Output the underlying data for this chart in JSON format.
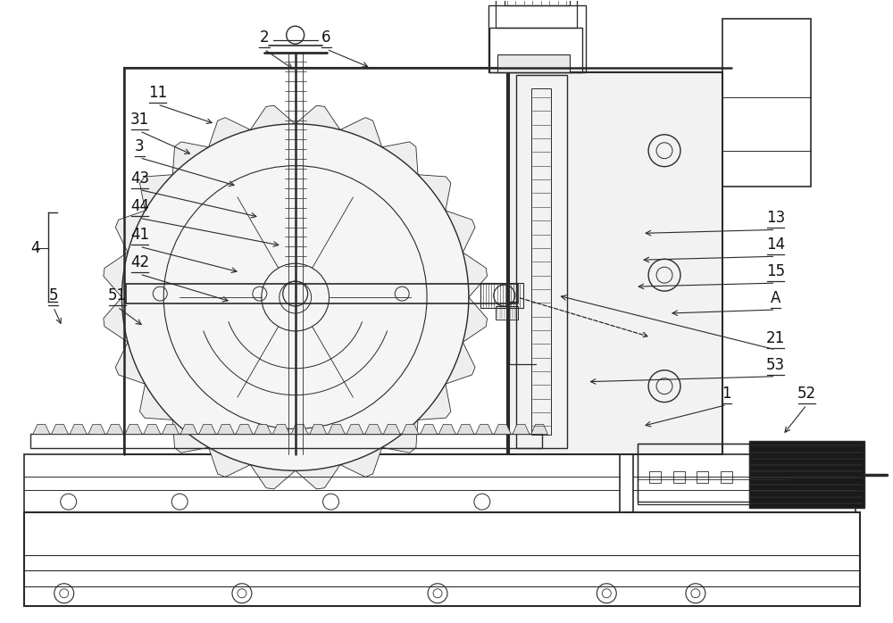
{
  "bg_color": "#ffffff",
  "line_color": "#2a2a2a",
  "label_color": "#111111",
  "fig_width": 10.0,
  "fig_height": 6.98,
  "dpi": 100
}
